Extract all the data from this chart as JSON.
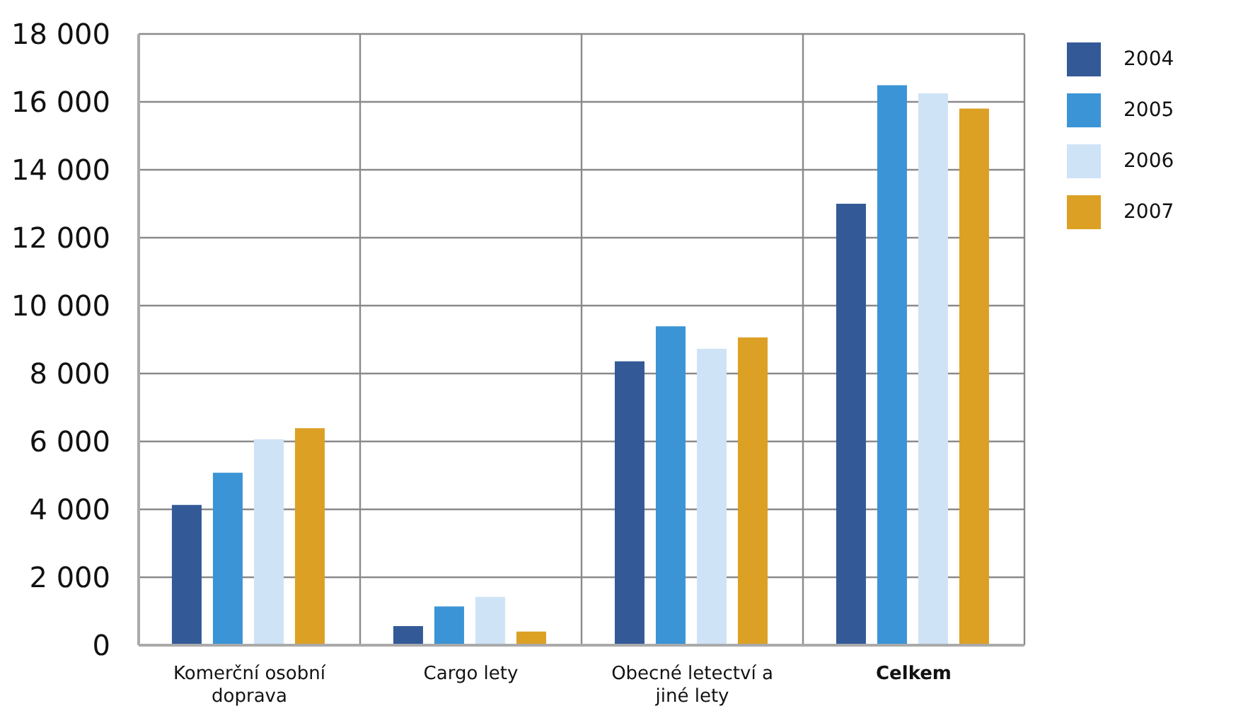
{
  "chart_data": {
    "type": "bar",
    "categories": [
      "Komerční osobní doprava",
      "Cargo lety",
      "Obecné letectví a jiné lety",
      "Celkem"
    ],
    "series": [
      {
        "name": "2004",
        "color": "#335a97",
        "values": [
          4130,
          560,
          8360,
          13000
        ]
      },
      {
        "name": "2005",
        "color": "#3a94d6",
        "values": [
          5080,
          1140,
          9390,
          16490
        ]
      },
      {
        "name": "2006",
        "color": "#cfe3f7",
        "values": [
          6060,
          1420,
          8730,
          16250
        ]
      },
      {
        "name": "2007",
        "color": "#dba024",
        "values": [
          6390,
          400,
          9060,
          15800
        ]
      }
    ],
    "ylim": [
      0,
      18000
    ],
    "yticks": [
      {
        "value": 0,
        "label": "0"
      },
      {
        "value": 2000,
        "label": "2 000"
      },
      {
        "value": 4000,
        "label": "4 000"
      },
      {
        "value": 6000,
        "label": "6 000"
      },
      {
        "value": 8000,
        "label": "8 000"
      },
      {
        "value": 10000,
        "label": "10 000"
      },
      {
        "value": 12000,
        "label": "12 000"
      },
      {
        "value": 14000,
        "label": "14 000"
      },
      {
        "value": 16000,
        "label": "16 000"
      },
      {
        "value": 18000,
        "label": "18 000"
      }
    ],
    "grid": true,
    "legend": "top right"
  }
}
